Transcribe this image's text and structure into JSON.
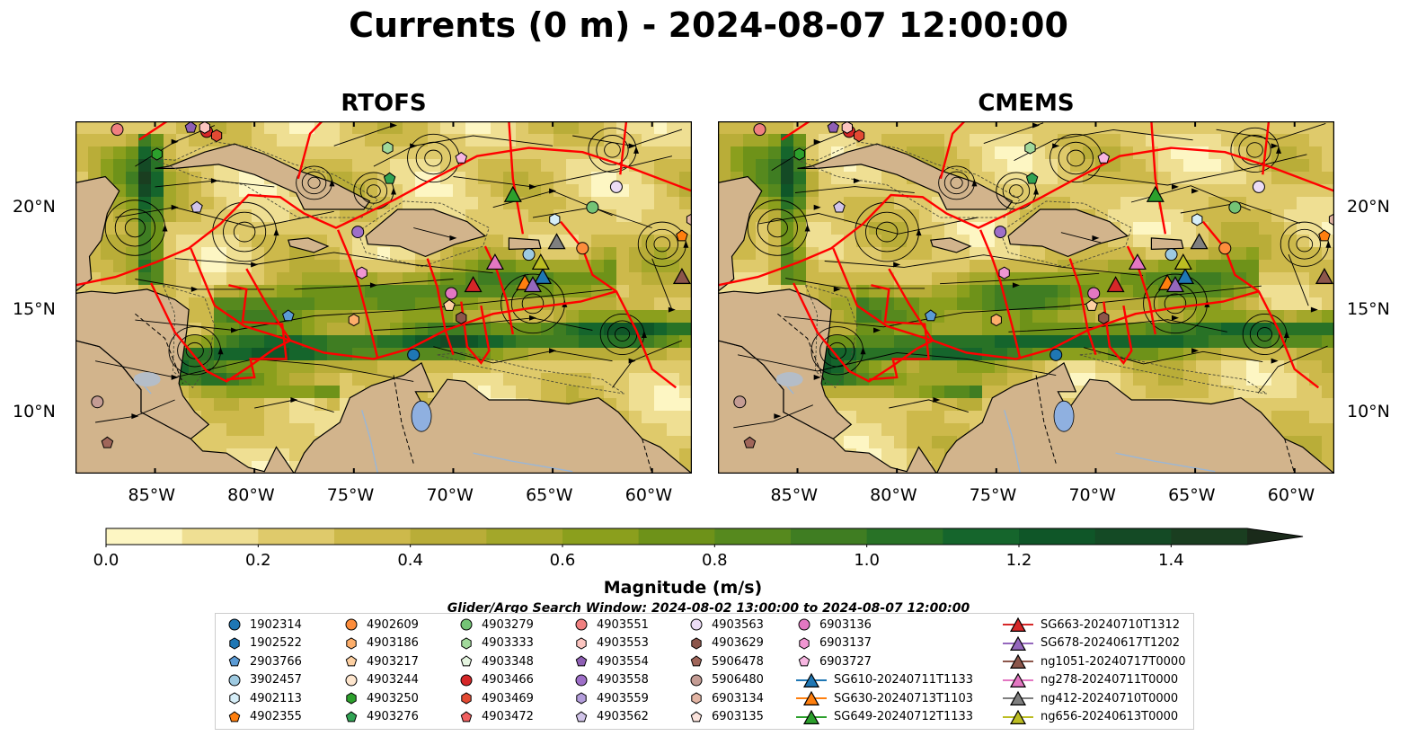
{
  "title": "Currents (0 m) - 2024-08-07 12:00:00",
  "panels": [
    {
      "title": "RTOFS"
    },
    {
      "title": "CMEMS"
    }
  ],
  "axes": {
    "lon_ticks": [
      "85°W",
      "80°W",
      "75°W",
      "70°W",
      "65°W",
      "60°W"
    ],
    "lat_ticks": [
      "20°N",
      "15°N",
      "10°N"
    ]
  },
  "colorbar": {
    "label": "Magnitude (m/s)",
    "ticks": [
      "0.0",
      "0.2",
      "0.4",
      "0.6",
      "0.8",
      "1.0",
      "1.2",
      "1.4"
    ],
    "colors": [
      "#fdf6c3",
      "#efdf93",
      "#dfca6b",
      "#cdb94b",
      "#b9ad38",
      "#a3a72a",
      "#8b9f1d",
      "#6e9219",
      "#56891e",
      "#3f7d22",
      "#287226",
      "#15652c",
      "#0f5628",
      "#144a25",
      "#1a3e20"
    ]
  },
  "search_window": "Glider/Argo Search Window: 2024-08-02 13:00:00 to 2024-08-07 12:00:00",
  "legend": {
    "columns": [
      [
        {
          "label": "1902314",
          "marker": "circle",
          "color": "#1f77b4"
        },
        {
          "label": "1902522",
          "marker": "hexagon",
          "color": "#1f77b4"
        },
        {
          "label": "2903766",
          "marker": "pentagon",
          "color": "#5b9bd5"
        },
        {
          "label": "3902457",
          "marker": "circle",
          "color": "#9ecae1"
        },
        {
          "label": "4902113",
          "marker": "hexagon",
          "color": "#d6eef8"
        },
        {
          "label": "4902355",
          "marker": "pentagon",
          "color": "#ff7f0e"
        }
      ],
      [
        {
          "label": "4902609",
          "marker": "circle",
          "color": "#fd8d3c"
        },
        {
          "label": "4903186",
          "marker": "hexagon",
          "color": "#fdae6b"
        },
        {
          "label": "4903217",
          "marker": "pentagon",
          "color": "#fdd0a2"
        },
        {
          "label": "4903244",
          "marker": "circle",
          "color": "#fee6ce"
        },
        {
          "label": "4903250",
          "marker": "hexagon",
          "color": "#2ca02c"
        },
        {
          "label": "4903276",
          "marker": "pentagon",
          "color": "#31a354"
        }
      ],
      [
        {
          "label": "4903279",
          "marker": "circle",
          "color": "#74c476"
        },
        {
          "label": "4903333",
          "marker": "hexagon",
          "color": "#a1d99b"
        },
        {
          "label": "4903348",
          "marker": "pentagon",
          "color": "#e5f5e0"
        },
        {
          "label": "4903466",
          "marker": "circle",
          "color": "#d62728"
        },
        {
          "label": "4903469",
          "marker": "hexagon",
          "color": "#e34a33"
        },
        {
          "label": "4903472",
          "marker": "pentagon",
          "color": "#f06060"
        }
      ],
      [
        {
          "label": "4903551",
          "marker": "circle",
          "color": "#f08080"
        },
        {
          "label": "4903553",
          "marker": "hexagon",
          "color": "#fcc5c0"
        },
        {
          "label": "4903554",
          "marker": "pentagon",
          "color": "#8e5fb4"
        },
        {
          "label": "4903558",
          "marker": "circle",
          "color": "#9e6fc8"
        },
        {
          "label": "4903559",
          "marker": "hexagon",
          "color": "#b39ddb"
        },
        {
          "label": "4903562",
          "marker": "pentagon",
          "color": "#d1c4e9"
        }
      ],
      [
        {
          "label": "4903563",
          "marker": "circle",
          "color": "#ecdcf5"
        },
        {
          "label": "4903629",
          "marker": "hexagon",
          "color": "#8c564b"
        },
        {
          "label": "5906478",
          "marker": "pentagon",
          "color": "#a0665a"
        },
        {
          "label": "5906480",
          "marker": "circle",
          "color": "#c49c94"
        },
        {
          "label": "6903134",
          "marker": "hexagon",
          "color": "#e3b5a4"
        },
        {
          "label": "6903135",
          "marker": "pentagon",
          "color": "#fbe3dc"
        }
      ],
      [
        {
          "label": "6903136",
          "marker": "circle",
          "color": "#e377c2"
        },
        {
          "label": "6903137",
          "marker": "hexagon",
          "color": "#f096d2"
        },
        {
          "label": "6903727",
          "marker": "pentagon",
          "color": "#f7b6e1"
        },
        {
          "label": "SG610-20240711T1133",
          "marker": "triangle-line",
          "color": "#1f77b4"
        },
        {
          "label": "SG630-20240713T1103",
          "marker": "triangle-line",
          "color": "#ff7f0e"
        },
        {
          "label": "SG649-20240712T1133",
          "marker": "triangle-line",
          "color": "#2ca02c"
        }
      ],
      [
        {
          "label": "SG663-20240710T1312",
          "marker": "triangle-line",
          "color": "#d62728"
        },
        {
          "label": "SG678-20240617T1202",
          "marker": "triangle-line",
          "color": "#9467bd"
        },
        {
          "label": "ng1051-20240717T0000",
          "marker": "triangle-line",
          "color": "#8c564b"
        },
        {
          "label": "ng278-20240711T0000",
          "marker": "triangle-line",
          "color": "#e377c2"
        },
        {
          "label": "ng412-20240710T0000",
          "marker": "triangle-line",
          "color": "#7f7f7f"
        },
        {
          "label": "ng656-20240613T0000",
          "marker": "triangle-line",
          "color": "#bcbd22"
        }
      ]
    ]
  },
  "chart_data": {
    "type": "map",
    "variable": "Magnitude (m/s)",
    "depth": "0 m",
    "lon_range": [
      -89,
      -58
    ],
    "lat_range": [
      7,
      24.2
    ],
    "vmin": 0.0,
    "vmax": 1.5,
    "floats": [
      {
        "name": "1902314",
        "lon": -72.0,
        "lat": 12.8
      },
      {
        "name": "2903766",
        "lon": -78.3,
        "lat": 14.7
      },
      {
        "name": "3902457",
        "lon": -66.2,
        "lat": 17.7
      },
      {
        "name": "4902113",
        "lon": -64.9,
        "lat": 19.4
      },
      {
        "name": "4902355",
        "lon": -58.5,
        "lat": 18.6
      },
      {
        "name": "4902609",
        "lon": -63.5,
        "lat": 18.0
      },
      {
        "name": "4903250",
        "lon": -84.9,
        "lat": 22.6
      },
      {
        "name": "4903276",
        "lon": -73.2,
        "lat": 21.4
      },
      {
        "name": "4903279",
        "lon": -63.0,
        "lat": 20.0
      },
      {
        "name": "4903333",
        "lon": -73.3,
        "lat": 22.9
      },
      {
        "name": "4903466",
        "lon": -82.4,
        "lat": 23.7
      },
      {
        "name": "4903469",
        "lon": -81.9,
        "lat": 23.5
      },
      {
        "name": "4903551",
        "lon": -86.9,
        "lat": 23.8
      },
      {
        "name": "4903553",
        "lon": -82.5,
        "lat": 23.9
      },
      {
        "name": "4903554",
        "lon": -83.2,
        "lat": 23.9
      },
      {
        "name": "4903558",
        "lon": -74.8,
        "lat": 18.8
      },
      {
        "name": "4903562",
        "lon": -82.9,
        "lat": 20.0
      },
      {
        "name": "4903563",
        "lon": -61.8,
        "lat": 21.0
      },
      {
        "name": "4903629",
        "lon": -69.6,
        "lat": 14.6
      },
      {
        "name": "5906478",
        "lon": -87.4,
        "lat": 8.5
      },
      {
        "name": "5906480",
        "lon": -87.9,
        "lat": 10.5
      },
      {
        "name": "6903134",
        "lon": -58.0,
        "lat": 19.4
      },
      {
        "name": "6903136",
        "lon": -70.1,
        "lat": 15.8
      },
      {
        "name": "6903137",
        "lon": -74.6,
        "lat": 16.8
      },
      {
        "name": "6903727",
        "lon": -69.6,
        "lat": 22.4
      },
      {
        "name": "4903186",
        "lon": -75.0,
        "lat": 14.5
      },
      {
        "name": "4903217",
        "lon": -70.2,
        "lat": 15.2
      }
    ],
    "gliders": [
      {
        "name": "SG610-20240711T1133",
        "lon": -65.5,
        "lat": 16.6
      },
      {
        "name": "SG630-20240713T1103",
        "lon": -66.4,
        "lat": 16.3
      },
      {
        "name": "SG649-20240712T1133",
        "lon": -67.0,
        "lat": 20.6
      },
      {
        "name": "SG663-20240710T1312",
        "lon": -69.0,
        "lat": 16.2
      },
      {
        "name": "SG678-20240617T1202",
        "lon": -66.0,
        "lat": 16.2
      },
      {
        "name": "ng1051-20240717T0000",
        "lon": -58.5,
        "lat": 16.6
      },
      {
        "name": "ng278-20240711T0000",
        "lon": -67.9,
        "lat": 17.3
      },
      {
        "name": "ng412-20240710T0000",
        "lon": -64.8,
        "lat": 18.3
      },
      {
        "name": "ng656-20240613T0000",
        "lon": -65.6,
        "lat": 17.3
      }
    ]
  }
}
